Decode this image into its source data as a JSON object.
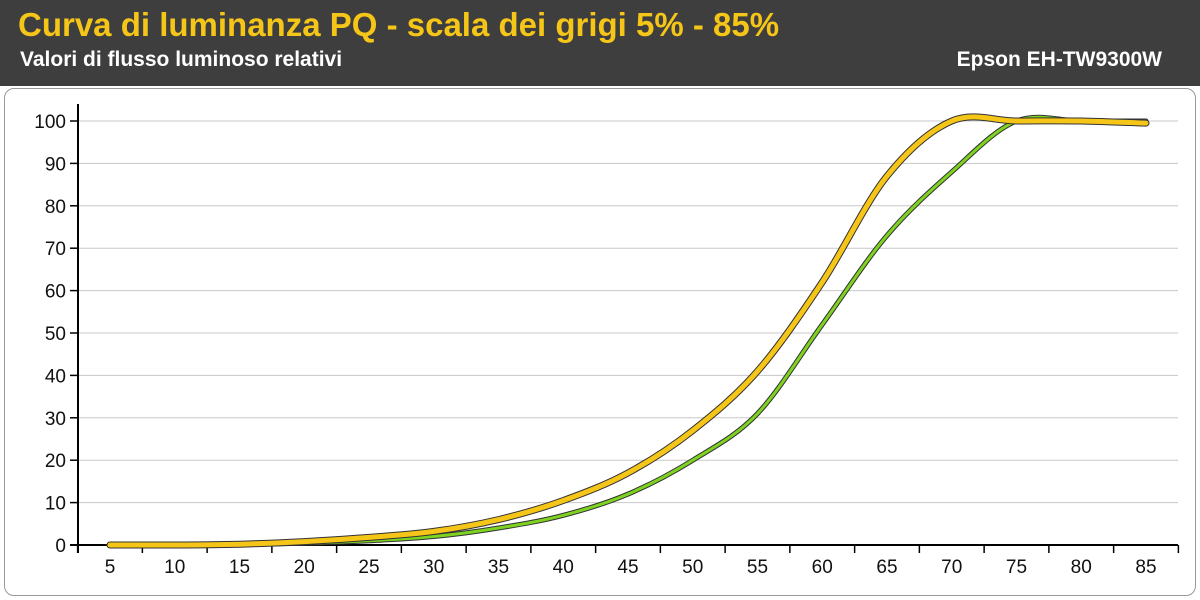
{
  "header": {
    "title": "Curva di luminanza PQ - scala dei grigi 5% - 85%",
    "subtitle": "Valori di flusso luminoso relativi",
    "model": "Epson EH-TW9300W"
  },
  "colors": {
    "header_bg": "#3e3e3e",
    "title": "#f5c518",
    "reference_line": "#7ed321",
    "measured_line": "#f5c518",
    "line_outline": "#333333",
    "grid": "#c8c8c8"
  },
  "chart_data": {
    "type": "line",
    "title": "Curva di luminanza PQ - scala dei grigi 5% - 85%",
    "subtitle": "Valori di flusso luminoso relativi",
    "x": [
      5,
      10,
      15,
      20,
      25,
      30,
      35,
      40,
      45,
      50,
      55,
      60,
      65,
      70,
      75,
      80,
      85
    ],
    "xlim": [
      5,
      85
    ],
    "ylim": [
      0,
      100
    ],
    "xticks": [
      "5",
      "10",
      "15",
      "20",
      "25",
      "30",
      "35",
      "40",
      "45",
      "50",
      "55",
      "60",
      "65",
      "70",
      "75",
      "80",
      "85"
    ],
    "yticks": [
      "0",
      "10",
      "20",
      "30",
      "40",
      "50",
      "60",
      "70",
      "80",
      "90",
      "100"
    ],
    "grid": "horizontal",
    "legend": "none",
    "series": [
      {
        "color": "#7ed321",
        "values": [
          0,
          0,
          0.1,
          0.4,
          1.0,
          2.0,
          4.0,
          7.0,
          12.0,
          20.0,
          31.0,
          52.0,
          73.0,
          88.0,
          100.0,
          100.0,
          100.0
        ]
      },
      {
        "color": "#f5c518",
        "values": [
          0,
          0,
          0.2,
          0.8,
          1.8,
          3.2,
          6.0,
          10.5,
          17.0,
          27.0,
          41.0,
          62.0,
          87.0,
          100.0,
          100.0,
          100.0,
          99.5
        ]
      }
    ]
  }
}
